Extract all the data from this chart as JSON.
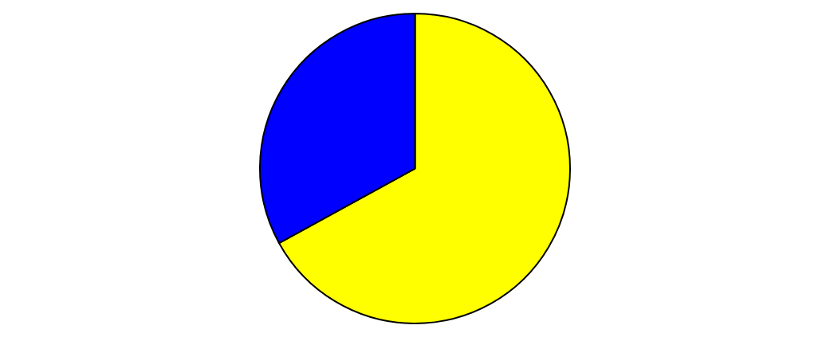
{
  "chart_data": {
    "type": "pie",
    "categories": [
      null,
      null
    ],
    "values": [
      67,
      33
    ],
    "colors": [
      "#ffff00",
      "#0000ff"
    ]
  }
}
